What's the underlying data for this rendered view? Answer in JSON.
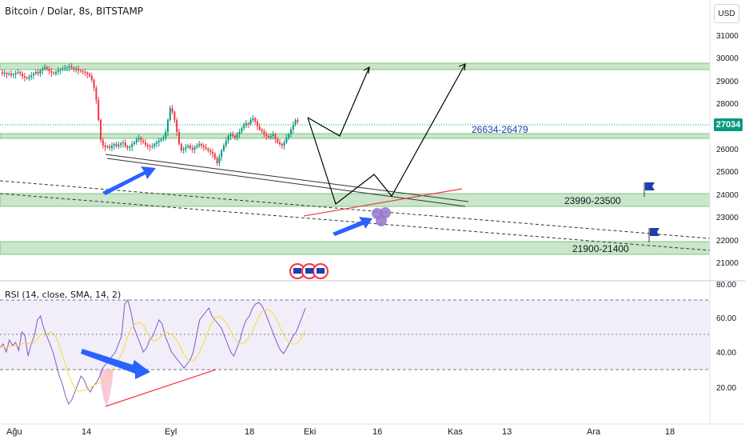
{
  "header": {
    "title": "Bitcoin / Dolar, 8s, BITSTAMP",
    "currency_button": "USD"
  },
  "price_axis": {
    "ticks": [
      "31000",
      "30000",
      "29000",
      "28000",
      "27000",
      "26000",
      "25000",
      "24000",
      "23000",
      "22000",
      "21000"
    ],
    "current_price": "27034"
  },
  "rsi_axis": {
    "ticks": [
      "80.00",
      "60.00",
      "40.00",
      "20.00"
    ]
  },
  "rsi": {
    "label": "RSI (14, close, SMA, 14, 2)"
  },
  "time_axis": {
    "ticks": [
      "Ağu",
      "14",
      "Eyl",
      "18",
      "Eki",
      "16",
      "Kas",
      "13",
      "Ara",
      "18"
    ]
  },
  "annotations": {
    "zone_top_right": "26634-26479",
    "zone_mid": "23990-23500",
    "zone_low": "21900-21400"
  },
  "colors": {
    "up": "#089981",
    "down": "#f23645",
    "zone_fill": "#c8e6c9",
    "zone_border": "#81c784",
    "arrow_blue": "#2962ff",
    "rsi_line": "#7e57c2",
    "rsi_ma": "#fdd835",
    "label_blue": "#1e40af"
  }
}
